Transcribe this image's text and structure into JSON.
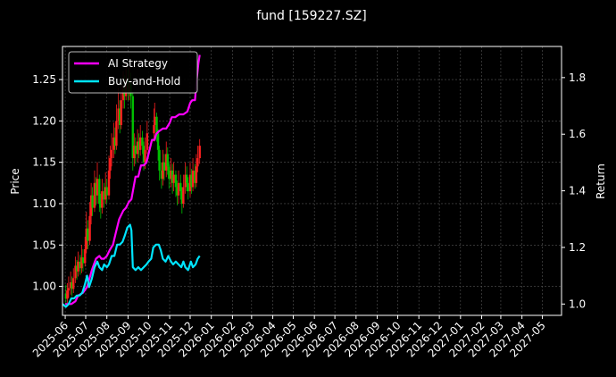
{
  "chart_data": {
    "type": "line",
    "title": "fund [159227.SZ]",
    "ylabel_left": "Price",
    "ylabel_right": "Return",
    "x_ticks": [
      "2025-06",
      "2025-07",
      "2025-08",
      "2025-09",
      "2025-10",
      "2025-11",
      "2025-12",
      "2026-01",
      "2026-02",
      "2026-03",
      "2026-04",
      "2026-05",
      "2026-06",
      "2026-07",
      "2026-08",
      "2026-09",
      "2026-10",
      "2026-11",
      "2026-12",
      "2027-01",
      "2027-02",
      "2027-03",
      "2027-04",
      "2027-05"
    ],
    "y_left_ticks": [
      1.0,
      1.05,
      1.1,
      1.15,
      1.2,
      1.25
    ],
    "y_left_range": [
      0.965,
      1.29
    ],
    "y_right_ticks": [
      1.0,
      1.2,
      1.4,
      1.6,
      1.8
    ],
    "y_right_range": [
      0.96,
      1.91
    ],
    "grid": true,
    "legend_position": "top-left",
    "x_range": [
      "2025-05-28",
      "2027-05-29"
    ],
    "colors": {
      "background": "#000000",
      "grid": "#555555",
      "up_candle": "#ff2020",
      "down_candle": "#00c000",
      "ai_strategy": "#ff00ff",
      "buy_and_hold": "#00e5ff"
    },
    "series": [
      {
        "name": "AI Strategy",
        "axis": "right",
        "points": [
          [
            "2025-06-01",
            1.0
          ],
          [
            "2025-06-10",
            1.0
          ],
          [
            "2025-06-16",
            1.01
          ],
          [
            "2025-06-20",
            1.03
          ],
          [
            "2025-06-27",
            1.04
          ],
          [
            "2025-07-03",
            1.06
          ],
          [
            "2025-07-10",
            1.12
          ],
          [
            "2025-07-16",
            1.16
          ],
          [
            "2025-07-21",
            1.17
          ],
          [
            "2025-07-24",
            1.16
          ],
          [
            "2025-07-28",
            1.16
          ],
          [
            "2025-08-01",
            1.17
          ],
          [
            "2025-08-05",
            1.19
          ],
          [
            "2025-08-10",
            1.21
          ],
          [
            "2025-08-14",
            1.25
          ],
          [
            "2025-08-19",
            1.3
          ],
          [
            "2025-08-25",
            1.33
          ],
          [
            "2025-08-29",
            1.34
          ],
          [
            "2025-09-02",
            1.36
          ],
          [
            "2025-09-06",
            1.37
          ],
          [
            "2025-09-12",
            1.45
          ],
          [
            "2025-09-16",
            1.45
          ],
          [
            "2025-09-20",
            1.49
          ],
          [
            "2025-09-24",
            1.49
          ],
          [
            "2025-09-28",
            1.5
          ],
          [
            "2025-10-03",
            1.55
          ],
          [
            "2025-10-06",
            1.58
          ],
          [
            "2025-10-10",
            1.58
          ],
          [
            "2025-10-12",
            1.6
          ],
          [
            "2025-10-16",
            1.61
          ],
          [
            "2025-10-22",
            1.62
          ],
          [
            "2025-10-27",
            1.62
          ],
          [
            "2025-11-01",
            1.64
          ],
          [
            "2025-11-04",
            1.66
          ],
          [
            "2025-11-09",
            1.66
          ],
          [
            "2025-11-15",
            1.67
          ],
          [
            "2025-11-21",
            1.67
          ],
          [
            "2025-11-27",
            1.68
          ],
          [
            "2025-12-01",
            1.71
          ],
          [
            "2025-12-04",
            1.72
          ],
          [
            "2025-12-08",
            1.72
          ],
          [
            "2025-12-10",
            1.78
          ],
          [
            "2025-12-13",
            1.85
          ],
          [
            "2025-12-15",
            1.88
          ]
        ]
      },
      {
        "name": "Buy-and-Hold",
        "axis": "right",
        "points": [
          [
            "2025-05-28",
            1.0
          ],
          [
            "2025-06-02",
            0.99
          ],
          [
            "2025-06-06",
            1.0
          ],
          [
            "2025-06-10",
            1.02
          ],
          [
            "2025-06-14",
            1.02
          ],
          [
            "2025-06-18",
            1.03
          ],
          [
            "2025-06-22",
            1.03
          ],
          [
            "2025-06-26",
            1.04
          ],
          [
            "2025-06-30",
            1.07
          ],
          [
            "2025-07-03",
            1.1
          ],
          [
            "2025-07-06",
            1.06
          ],
          [
            "2025-07-10",
            1.09
          ],
          [
            "2025-07-14",
            1.13
          ],
          [
            "2025-07-18",
            1.15
          ],
          [
            "2025-07-21",
            1.13
          ],
          [
            "2025-07-25",
            1.12
          ],
          [
            "2025-07-28",
            1.14
          ],
          [
            "2025-08-01",
            1.13
          ],
          [
            "2025-08-04",
            1.14
          ],
          [
            "2025-08-08",
            1.17
          ],
          [
            "2025-08-12",
            1.17
          ],
          [
            "2025-08-16",
            1.21
          ],
          [
            "2025-08-20",
            1.21
          ],
          [
            "2025-08-24",
            1.22
          ],
          [
            "2025-08-27",
            1.24
          ],
          [
            "2025-08-31",
            1.27
          ],
          [
            "2025-09-04",
            1.28
          ],
          [
            "2025-09-06",
            1.26
          ],
          [
            "2025-09-08",
            1.13
          ],
          [
            "2025-09-12",
            1.12
          ],
          [
            "2025-09-16",
            1.13
          ],
          [
            "2025-09-20",
            1.12
          ],
          [
            "2025-09-24",
            1.13
          ],
          [
            "2025-09-28",
            1.14
          ],
          [
            "2025-10-01",
            1.15
          ],
          [
            "2025-10-05",
            1.16
          ],
          [
            "2025-10-08",
            1.2
          ],
          [
            "2025-10-12",
            1.21
          ],
          [
            "2025-10-16",
            1.21
          ],
          [
            "2025-10-19",
            1.19
          ],
          [
            "2025-10-22",
            1.16
          ],
          [
            "2025-10-26",
            1.15
          ],
          [
            "2025-10-30",
            1.17
          ],
          [
            "2025-11-03",
            1.15
          ],
          [
            "2025-11-06",
            1.14
          ],
          [
            "2025-11-10",
            1.15
          ],
          [
            "2025-11-14",
            1.14
          ],
          [
            "2025-11-18",
            1.13
          ],
          [
            "2025-11-21",
            1.15
          ],
          [
            "2025-11-24",
            1.13
          ],
          [
            "2025-11-28",
            1.12
          ],
          [
            "2025-12-02",
            1.15
          ],
          [
            "2025-12-05",
            1.13
          ],
          [
            "2025-12-09",
            1.14
          ],
          [
            "2025-12-12",
            1.16
          ],
          [
            "2025-12-15",
            1.17
          ]
        ]
      }
    ],
    "candles": [
      [
        "2025-06-02",
        0.991,
        0.985,
        1.002,
        0.978
      ],
      [
        "2025-06-04",
        0.985,
        0.995,
        1.004,
        0.98
      ],
      [
        "2025-06-06",
        0.995,
        0.998,
        1.012,
        0.986
      ],
      [
        "2025-06-09",
        0.998,
        1.005,
        1.018,
        0.99
      ],
      [
        "2025-06-11",
        1.005,
        0.997,
        1.012,
        0.988
      ],
      [
        "2025-06-13",
        0.997,
        1.01,
        1.022,
        0.992
      ],
      [
        "2025-06-16",
        1.01,
        1.025,
        1.036,
        1.004
      ],
      [
        "2025-06-18",
        1.025,
        1.018,
        1.032,
        1.008
      ],
      [
        "2025-06-20",
        1.018,
        1.03,
        1.042,
        1.012
      ],
      [
        "2025-06-23",
        1.03,
        1.022,
        1.038,
        1.014
      ],
      [
        "2025-06-25",
        1.022,
        1.035,
        1.05,
        1.016
      ],
      [
        "2025-06-27",
        1.035,
        1.028,
        1.045,
        1.018
      ],
      [
        "2025-06-30",
        1.028,
        1.045,
        1.06,
        1.024
      ],
      [
        "2025-07-02",
        1.045,
        1.07,
        1.09,
        1.04
      ],
      [
        "2025-07-04",
        1.07,
        1.055,
        1.08,
        1.045
      ],
      [
        "2025-07-07",
        1.055,
        1.085,
        1.102,
        1.05
      ],
      [
        "2025-07-09",
        1.085,
        1.11,
        1.125,
        1.075
      ],
      [
        "2025-07-11",
        1.11,
        1.095,
        1.12,
        1.085
      ],
      [
        "2025-07-14",
        1.095,
        1.125,
        1.14,
        1.09
      ],
      [
        "2025-07-16",
        1.125,
        1.11,
        1.132,
        1.098
      ],
      [
        "2025-07-18",
        1.11,
        1.13,
        1.15,
        1.1
      ],
      [
        "2025-07-21",
        1.13,
        1.1,
        1.135,
        1.09
      ],
      [
        "2025-07-23",
        1.1,
        1.095,
        1.112,
        1.082
      ],
      [
        "2025-07-25",
        1.095,
        1.115,
        1.13,
        1.088
      ],
      [
        "2025-07-28",
        1.115,
        1.105,
        1.125,
        1.095
      ],
      [
        "2025-07-30",
        1.105,
        1.12,
        1.138,
        1.1
      ],
      [
        "2025-08-01",
        1.12,
        1.11,
        1.13,
        1.1
      ],
      [
        "2025-08-04",
        1.11,
        1.14,
        1.158,
        1.105
      ],
      [
        "2025-08-06",
        1.14,
        1.155,
        1.17,
        1.13
      ],
      [
        "2025-08-08",
        1.155,
        1.165,
        1.185,
        1.145
      ],
      [
        "2025-08-11",
        1.165,
        1.18,
        1.198,
        1.155
      ],
      [
        "2025-08-13",
        1.18,
        1.17,
        1.192,
        1.16
      ],
      [
        "2025-08-15",
        1.17,
        1.2,
        1.22,
        1.165
      ],
      [
        "2025-08-18",
        1.2,
        1.215,
        1.24,
        1.19
      ],
      [
        "2025-08-20",
        1.215,
        1.195,
        1.225,
        1.185
      ],
      [
        "2025-08-22",
        1.195,
        1.225,
        1.245,
        1.19
      ],
      [
        "2025-08-25",
        1.225,
        1.24,
        1.26,
        1.215
      ],
      [
        "2025-08-27",
        1.24,
        1.23,
        1.255,
        1.215
      ],
      [
        "2025-08-29",
        1.23,
        1.25,
        1.27,
        1.225
      ],
      [
        "2025-09-01",
        1.25,
        1.235,
        1.262,
        1.225
      ],
      [
        "2025-09-03",
        1.235,
        1.245,
        1.265,
        1.225
      ],
      [
        "2025-09-05",
        1.245,
        1.23,
        1.258,
        1.215
      ],
      [
        "2025-09-08",
        1.23,
        1.155,
        1.235,
        1.14
      ],
      [
        "2025-09-10",
        1.155,
        1.17,
        1.185,
        1.145
      ],
      [
        "2025-09-12",
        1.17,
        1.16,
        1.18,
        1.148
      ],
      [
        "2025-09-15",
        1.16,
        1.175,
        1.19,
        1.15
      ],
      [
        "2025-09-17",
        1.175,
        1.165,
        1.185,
        1.155
      ],
      [
        "2025-09-19",
        1.165,
        1.18,
        1.195,
        1.158
      ],
      [
        "2025-09-22",
        1.18,
        1.17,
        1.188,
        1.16
      ],
      [
        "2025-09-24",
        1.17,
        1.15,
        1.175,
        1.14
      ],
      [
        "2025-09-26",
        1.15,
        1.165,
        1.18,
        1.142
      ],
      [
        "2025-09-29",
        1.165,
        1.185,
        1.2,
        1.16
      ],
      [
        "2025-10-09",
        1.185,
        1.195,
        1.215,
        1.175
      ],
      [
        "2025-10-10",
        1.195,
        1.205,
        1.222,
        1.185
      ],
      [
        "2025-10-13",
        1.205,
        1.185,
        1.21,
        1.175
      ],
      [
        "2025-10-15",
        1.185,
        1.165,
        1.19,
        1.152
      ],
      [
        "2025-10-17",
        1.165,
        1.14,
        1.17,
        1.128
      ],
      [
        "2025-10-20",
        1.14,
        1.13,
        1.15,
        1.118
      ],
      [
        "2025-10-22",
        1.13,
        1.15,
        1.165,
        1.122
      ],
      [
        "2025-10-24",
        1.15,
        1.14,
        1.16,
        1.128
      ],
      [
        "2025-10-27",
        1.14,
        1.16,
        1.175,
        1.132
      ],
      [
        "2025-10-29",
        1.16,
        1.145,
        1.168,
        1.135
      ],
      [
        "2025-10-31",
        1.145,
        1.13,
        1.15,
        1.118
      ],
      [
        "2025-11-03",
        1.13,
        1.14,
        1.155,
        1.12
      ],
      [
        "2025-11-05",
        1.14,
        1.125,
        1.148,
        1.112
      ],
      [
        "2025-11-07",
        1.125,
        1.135,
        1.15,
        1.115
      ],
      [
        "2025-11-10",
        1.135,
        1.12,
        1.14,
        1.108
      ],
      [
        "2025-11-12",
        1.12,
        1.11,
        1.128,
        1.098
      ],
      [
        "2025-11-14",
        1.11,
        1.125,
        1.14,
        1.1
      ],
      [
        "2025-11-17",
        1.125,
        1.115,
        1.135,
        1.105
      ],
      [
        "2025-11-19",
        1.115,
        1.1,
        1.12,
        1.088
      ],
      [
        "2025-11-21",
        1.1,
        1.12,
        1.135,
        1.095
      ],
      [
        "2025-11-24",
        1.12,
        1.135,
        1.15,
        1.112
      ],
      [
        "2025-11-26",
        1.135,
        1.125,
        1.145,
        1.115
      ],
      [
        "2025-11-28",
        1.125,
        1.115,
        1.132,
        1.105
      ],
      [
        "2025-12-01",
        1.115,
        1.135,
        1.15,
        1.108
      ],
      [
        "2025-12-03",
        1.135,
        1.12,
        1.142,
        1.112
      ],
      [
        "2025-12-05",
        1.12,
        1.14,
        1.155,
        1.115
      ],
      [
        "2025-12-08",
        1.14,
        1.125,
        1.148,
        1.118
      ],
      [
        "2025-12-10",
        1.125,
        1.145,
        1.16,
        1.12
      ],
      [
        "2025-12-12",
        1.145,
        1.155,
        1.17,
        1.138
      ],
      [
        "2025-12-15",
        1.155,
        1.17,
        1.178,
        1.148
      ]
    ]
  }
}
